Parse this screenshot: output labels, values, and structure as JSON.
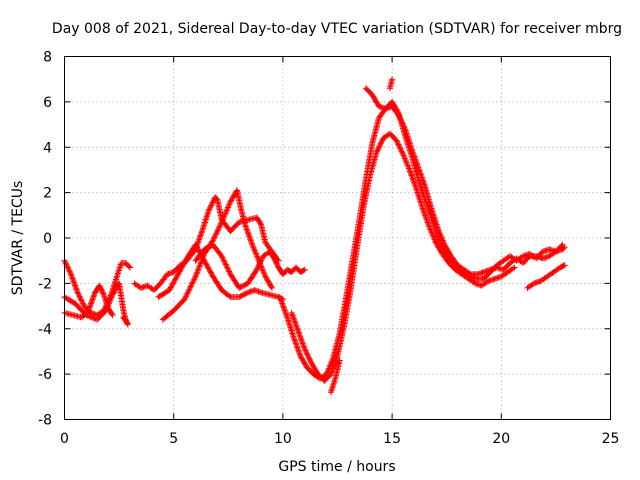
{
  "chart_data": {
    "type": "scatter",
    "title": "Day 008 of 2021, Sidereal Day-to-day VTEC variation (SDTVAR) for receiver mbrg",
    "xlabel": "GPS time / hours",
    "ylabel": "SDTVAR / TECUs",
    "xlim": [
      0,
      25
    ],
    "ylim": [
      -8,
      8
    ],
    "xticks": [
      0,
      5,
      10,
      15,
      20,
      25
    ],
    "yticks": [
      -8,
      -6,
      -4,
      -2,
      0,
      2,
      4,
      6,
      8
    ],
    "grid": true,
    "marker": "+",
    "series_color": "#ff0000",
    "series": [
      {
        "name": "trace-1",
        "points": [
          [
            0.0,
            -1.0
          ],
          [
            0.3,
            -1.6
          ],
          [
            0.6,
            -2.4
          ],
          [
            0.9,
            -3.0
          ],
          [
            1.2,
            -3.3
          ],
          [
            1.5,
            -3.4
          ],
          [
            1.8,
            -3.2
          ],
          [
            2.1,
            -2.6
          ],
          [
            2.4,
            -1.7
          ],
          [
            2.6,
            -1.1
          ],
          [
            2.8,
            -1.1
          ],
          [
            3.0,
            -1.3
          ]
        ]
      },
      {
        "name": "trace-2",
        "points": [
          [
            0.0,
            -2.6
          ],
          [
            0.5,
            -2.9
          ],
          [
            1.0,
            -3.4
          ],
          [
            1.5,
            -3.6
          ],
          [
            1.9,
            -3.2
          ],
          [
            2.2,
            -2.5
          ],
          [
            2.5,
            -2.0
          ],
          [
            2.7,
            -3.2
          ],
          [
            2.8,
            -3.6
          ],
          [
            2.9,
            -3.8
          ]
        ]
      },
      {
        "name": "trace-3",
        "points": [
          [
            0.0,
            -3.3
          ],
          [
            0.4,
            -3.4
          ],
          [
            0.8,
            -3.5
          ],
          [
            1.1,
            -3.2
          ],
          [
            1.4,
            -2.4
          ],
          [
            1.6,
            -2.1
          ],
          [
            1.8,
            -2.5
          ],
          [
            2.0,
            -3.1
          ],
          [
            2.2,
            -3.4
          ]
        ]
      },
      {
        "name": "trace-4",
        "points": [
          [
            3.2,
            -2.0
          ],
          [
            3.5,
            -2.2
          ],
          [
            3.8,
            -2.1
          ],
          [
            4.1,
            -2.3
          ],
          [
            4.4,
            -2.0
          ],
          [
            4.7,
            -1.6
          ],
          [
            5.0,
            -1.5
          ],
          [
            5.3,
            -1.2
          ],
          [
            5.6,
            -1.0
          ],
          [
            6.0,
            -0.5
          ],
          [
            6.3,
            0.3
          ],
          [
            6.6,
            1.2
          ],
          [
            6.9,
            1.8
          ],
          [
            7.0,
            1.7
          ],
          [
            7.2,
            0.8
          ],
          [
            7.6,
            0.3
          ],
          [
            8.0,
            0.7
          ],
          [
            8.4,
            0.8
          ],
          [
            8.8,
            0.9
          ],
          [
            9.0,
            0.6
          ],
          [
            9.2,
            -0.2
          ],
          [
            9.5,
            -0.6
          ],
          [
            9.8,
            -1.0
          ]
        ]
      },
      {
        "name": "trace-5",
        "points": [
          [
            4.5,
            -3.6
          ],
          [
            5.0,
            -3.2
          ],
          [
            5.5,
            -2.7
          ],
          [
            6.0,
            -1.7
          ],
          [
            6.4,
            -0.7
          ],
          [
            6.8,
            -0.1
          ],
          [
            7.2,
            0.7
          ],
          [
            7.6,
            1.6
          ],
          [
            7.9,
            2.1
          ],
          [
            8.1,
            1.2
          ],
          [
            8.3,
            0.5
          ],
          [
            8.6,
            -0.3
          ],
          [
            8.9,
            -1.0
          ],
          [
            9.2,
            -1.7
          ],
          [
            9.5,
            -2.2
          ]
        ]
      },
      {
        "name": "trace-6",
        "points": [
          [
            4.3,
            -2.6
          ],
          [
            4.8,
            -2.3
          ],
          [
            5.2,
            -1.6
          ],
          [
            5.6,
            -0.9
          ],
          [
            6.0,
            -0.3
          ],
          [
            6.4,
            -1.0
          ],
          [
            6.8,
            -1.7
          ],
          [
            7.2,
            -2.3
          ],
          [
            7.6,
            -2.6
          ],
          [
            8.0,
            -2.6
          ],
          [
            8.4,
            -2.4
          ],
          [
            8.7,
            -2.3
          ],
          [
            9.0,
            -2.4
          ],
          [
            9.4,
            -2.5
          ],
          [
            9.8,
            -2.6
          ],
          [
            10.0,
            -2.7
          ]
        ]
      },
      {
        "name": "trace-7",
        "points": [
          [
            6.0,
            -1.0
          ],
          [
            6.4,
            -0.5
          ],
          [
            6.8,
            -0.3
          ],
          [
            7.2,
            -0.8
          ],
          [
            7.6,
            -1.6
          ],
          [
            8.0,
            -2.2
          ],
          [
            8.4,
            -2.0
          ],
          [
            8.8,
            -1.4
          ],
          [
            9.1,
            -0.8
          ],
          [
            9.4,
            -0.6
          ],
          [
            9.6,
            -0.9
          ],
          [
            9.8,
            -1.3
          ],
          [
            10.0,
            -1.6
          ],
          [
            10.2,
            -1.4
          ],
          [
            10.4,
            -1.5
          ],
          [
            10.6,
            -1.3
          ],
          [
            10.8,
            -1.5
          ],
          [
            11.0,
            -1.4
          ]
        ]
      },
      {
        "name": "trace-8",
        "points": [
          [
            9.9,
            -2.7
          ],
          [
            10.2,
            -3.5
          ],
          [
            10.5,
            -4.4
          ],
          [
            10.8,
            -5.2
          ],
          [
            11.1,
            -5.7
          ],
          [
            11.4,
            -6.0
          ],
          [
            11.7,
            -6.2
          ],
          [
            12.0,
            -6.0
          ],
          [
            12.3,
            -5.3
          ],
          [
            12.6,
            -4.2
          ],
          [
            12.9,
            -2.6
          ],
          [
            13.2,
            -0.9
          ],
          [
            13.5,
            0.8
          ],
          [
            13.8,
            2.6
          ],
          [
            14.1,
            4.2
          ],
          [
            14.4,
            5.3
          ],
          [
            14.7,
            5.7
          ],
          [
            15.0,
            5.8
          ],
          [
            15.3,
            5.4
          ],
          [
            15.6,
            4.8
          ],
          [
            15.9,
            3.9
          ],
          [
            16.2,
            3.1
          ],
          [
            16.5,
            2.3
          ],
          [
            16.8,
            1.3
          ],
          [
            17.1,
            0.4
          ],
          [
            17.4,
            -0.3
          ],
          [
            17.7,
            -0.8
          ],
          [
            18.0,
            -1.2
          ],
          [
            18.3,
            -1.4
          ],
          [
            18.6,
            -1.6
          ],
          [
            18.9,
            -1.6
          ],
          [
            19.2,
            -1.5
          ],
          [
            19.5,
            -1.4
          ],
          [
            19.8,
            -1.3
          ],
          [
            20.1,
            -1.4
          ],
          [
            20.4,
            -1.1
          ],
          [
            20.7,
            -0.9
          ],
          [
            21.0,
            -1.1
          ],
          [
            21.3,
            -0.8
          ],
          [
            21.6,
            -0.8
          ],
          [
            21.9,
            -0.9
          ],
          [
            22.2,
            -0.8
          ],
          [
            22.5,
            -0.6
          ],
          [
            22.8,
            -0.5
          ],
          [
            22.9,
            -0.4
          ]
        ]
      },
      {
        "name": "trace-9",
        "points": [
          [
            10.4,
            -3.3
          ],
          [
            10.7,
            -4.1
          ],
          [
            11.0,
            -4.9
          ],
          [
            11.3,
            -5.5
          ],
          [
            11.6,
            -6.0
          ],
          [
            11.9,
            -6.3
          ],
          [
            12.2,
            -6.0
          ],
          [
            12.5,
            -5.2
          ],
          [
            12.8,
            -3.9
          ],
          [
            13.1,
            -2.3
          ],
          [
            13.4,
            -0.4
          ],
          [
            13.7,
            1.4
          ],
          [
            14.0,
            2.8
          ],
          [
            14.3,
            3.8
          ],
          [
            14.6,
            4.4
          ],
          [
            14.9,
            4.6
          ],
          [
            15.2,
            4.3
          ],
          [
            15.5,
            3.7
          ],
          [
            15.8,
            3.0
          ],
          [
            16.1,
            2.2
          ],
          [
            16.4,
            1.3
          ],
          [
            16.7,
            0.5
          ],
          [
            17.0,
            -0.2
          ],
          [
            17.3,
            -0.7
          ],
          [
            17.6,
            -1.1
          ],
          [
            17.9,
            -1.4
          ],
          [
            18.2,
            -1.6
          ],
          [
            18.5,
            -1.8
          ],
          [
            18.8,
            -2.0
          ],
          [
            19.1,
            -2.1
          ],
          [
            19.4,
            -1.9
          ],
          [
            19.7,
            -1.8
          ],
          [
            20.0,
            -1.7
          ],
          [
            20.3,
            -1.5
          ],
          [
            20.6,
            -1.3
          ]
        ]
      },
      {
        "name": "trace-10",
        "points": [
          [
            13.8,
            6.6
          ],
          [
            14.1,
            6.3
          ],
          [
            14.4,
            5.8
          ],
          [
            14.7,
            5.7
          ],
          [
            15.0,
            6.0
          ],
          [
            15.3,
            5.5
          ],
          [
            15.6,
            4.5
          ],
          [
            15.9,
            3.6
          ],
          [
            16.2,
            2.6
          ],
          [
            16.5,
            1.7
          ],
          [
            16.8,
            0.9
          ],
          [
            17.1,
            0.0
          ],
          [
            17.4,
            -0.6
          ],
          [
            17.7,
            -1.0
          ],
          [
            18.0,
            -1.3
          ],
          [
            18.3,
            -1.5
          ],
          [
            18.6,
            -1.7
          ],
          [
            18.9,
            -1.8
          ],
          [
            19.2,
            -1.8
          ],
          [
            19.5,
            -1.5
          ],
          [
            19.8,
            -1.2
          ],
          [
            20.1,
            -1.0
          ],
          [
            20.4,
            -0.8
          ],
          [
            20.7,
            -1.0
          ],
          [
            21.0,
            -0.8
          ],
          [
            21.3,
            -0.7
          ],
          [
            21.6,
            -0.9
          ],
          [
            21.9,
            -0.6
          ],
          [
            22.2,
            -0.5
          ],
          [
            22.5,
            -0.6
          ],
          [
            22.8,
            -0.3
          ]
        ]
      },
      {
        "name": "trace-11",
        "points": [
          [
            12.2,
            -6.8
          ],
          [
            12.4,
            -6.2
          ],
          [
            12.6,
            -5.4
          ]
        ]
      },
      {
        "name": "trace-12",
        "points": [
          [
            15.0,
            7.0
          ],
          [
            14.9,
            6.6
          ]
        ]
      },
      {
        "name": "trace-13",
        "points": [
          [
            21.2,
            -2.2
          ],
          [
            21.5,
            -2.0
          ],
          [
            21.8,
            -1.9
          ],
          [
            22.1,
            -1.7
          ],
          [
            22.4,
            -1.5
          ],
          [
            22.7,
            -1.3
          ],
          [
            22.9,
            -1.2
          ]
        ]
      },
      {
        "name": "trace-14",
        "points": [
          [
            2.7,
            -3.5
          ],
          [
            2.9,
            -3.8
          ]
        ]
      }
    ]
  }
}
